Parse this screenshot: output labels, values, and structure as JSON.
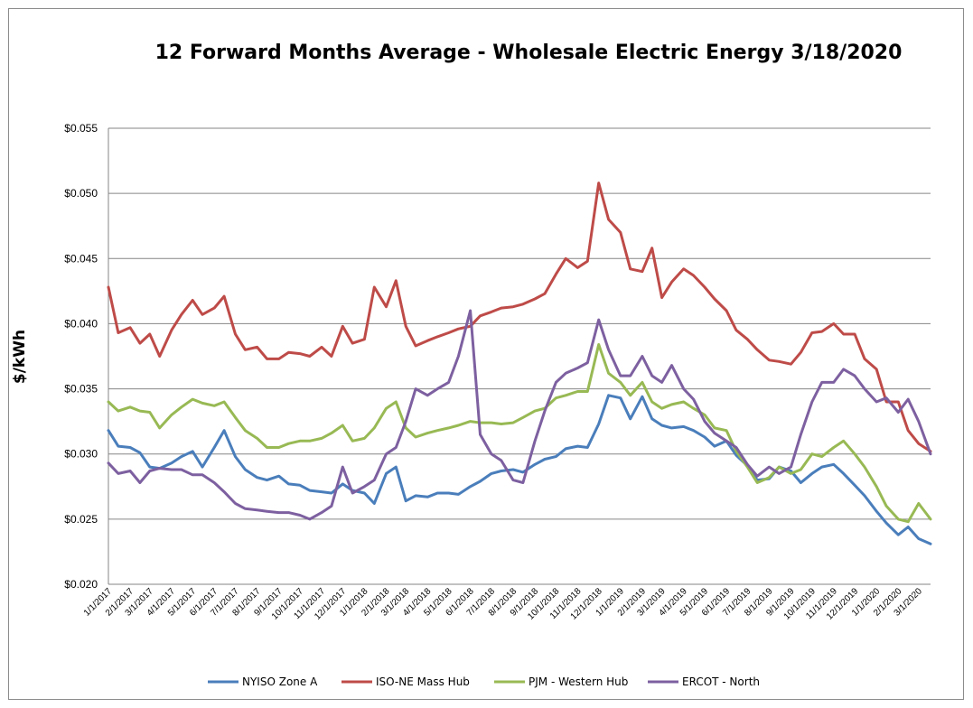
{
  "chart_data": {
    "type": "line",
    "title": "12 Forward Months Average - Wholesale Electric Energy 3/18/2020",
    "xlabel": "",
    "ylabel": "$/kWh",
    "ylim": [
      0.02,
      0.055
    ],
    "yticks": [
      "$0.020",
      "$0.025",
      "$0.030",
      "$0.035",
      "$0.040",
      "$0.045",
      "$0.050",
      "$0.055"
    ],
    "grid": true,
    "legend_position": "bottom",
    "x_tick_labels": [
      "1/1/2017",
      "2/1/2017",
      "3/1/2017",
      "4/1/2017",
      "5/1/2017",
      "6/1/2017",
      "7/1/2017",
      "8/1/2017",
      "9/1/2017",
      "10/1/2017",
      "11/1/2017",
      "12/1/2017",
      "1/1/2018",
      "2/1/2018",
      "3/1/2018",
      "4/1/2018",
      "5/1/2018",
      "6/1/2018",
      "7/1/2018",
      "8/1/2018",
      "9/1/2018",
      "10/1/2018",
      "11/1/2018",
      "12/1/2018",
      "1/1/2019",
      "2/1/2019",
      "3/1/2019",
      "4/1/2019",
      "5/1/2019",
      "6/1/2019",
      "7/1/2019",
      "8/1/2019",
      "9/1/2019",
      "10/1/2019",
      "11/1/2019",
      "12/1/2019",
      "1/1/2020",
      "2/1/2020",
      "3/1/2020"
    ],
    "x": [
      "2017-01-01",
      "2017-01-15",
      "2017-02-01",
      "2017-02-15",
      "2017-03-01",
      "2017-03-15",
      "2017-04-01",
      "2017-04-15",
      "2017-05-01",
      "2017-05-15",
      "2017-06-01",
      "2017-06-15",
      "2017-07-01",
      "2017-07-15",
      "2017-08-01",
      "2017-08-15",
      "2017-09-01",
      "2017-09-15",
      "2017-10-01",
      "2017-10-15",
      "2017-11-01",
      "2017-11-15",
      "2017-12-01",
      "2017-12-15",
      "2018-01-01",
      "2018-01-15",
      "2018-02-01",
      "2018-02-15",
      "2018-03-01",
      "2018-03-15",
      "2018-04-01",
      "2018-04-15",
      "2018-05-01",
      "2018-05-15",
      "2018-06-01",
      "2018-06-15",
      "2018-07-01",
      "2018-07-15",
      "2018-08-01",
      "2018-08-15",
      "2018-09-01",
      "2018-09-15",
      "2018-10-01",
      "2018-10-15",
      "2018-11-01",
      "2018-11-15",
      "2018-12-01",
      "2018-12-15",
      "2019-01-01",
      "2019-01-15",
      "2019-02-01",
      "2019-02-15",
      "2019-03-01",
      "2019-03-15",
      "2019-04-01",
      "2019-04-15",
      "2019-05-01",
      "2019-05-15",
      "2019-06-01",
      "2019-06-15",
      "2019-07-01",
      "2019-07-15",
      "2019-08-01",
      "2019-08-15",
      "2019-09-01",
      "2019-09-15",
      "2019-10-01",
      "2019-10-15",
      "2019-11-01",
      "2019-11-15",
      "2019-12-01",
      "2019-12-15",
      "2020-01-01",
      "2020-01-15",
      "2020-02-01",
      "2020-02-15",
      "2020-03-01",
      "2020-03-18"
    ],
    "series": [
      {
        "name": "NYISO Zone A",
        "color": "#4a7ebb",
        "values": [
          0.0318,
          0.0306,
          0.0305,
          0.0301,
          0.029,
          0.0289,
          0.0293,
          0.0298,
          0.0302,
          0.029,
          0.0305,
          0.0318,
          0.0298,
          0.0288,
          0.0282,
          0.028,
          0.0283,
          0.0277,
          0.0276,
          0.0272,
          0.0271,
          0.027,
          0.0277,
          0.0272,
          0.027,
          0.0262,
          0.0285,
          0.029,
          0.0264,
          0.0268,
          0.0267,
          0.027,
          0.027,
          0.0269,
          0.0275,
          0.0279,
          0.0285,
          0.0287,
          0.0288,
          0.0286,
          0.0292,
          0.0296,
          0.0298,
          0.0304,
          0.0306,
          0.0305,
          0.0323,
          0.0345,
          0.0343,
          0.0327,
          0.0344,
          0.0327,
          0.0322,
          0.032,
          0.0321,
          0.0318,
          0.0313,
          0.0306,
          0.031,
          0.0299,
          0.0291,
          0.028,
          0.0281,
          0.029,
          0.0287,
          0.0278,
          0.0285,
          0.029,
          0.0292,
          0.0285,
          0.0276,
          0.0268,
          0.0256,
          0.0247,
          0.0238,
          0.0244,
          0.0235,
          0.0231
        ]
      },
      {
        "name": "ISO-NE Mass Hub",
        "color": "#be4b48",
        "values": [
          0.0428,
          0.0393,
          0.0397,
          0.0385,
          0.0392,
          0.0375,
          0.0395,
          0.0407,
          0.0418,
          0.0407,
          0.0412,
          0.0421,
          0.0392,
          0.038,
          0.0382,
          0.0373,
          0.0373,
          0.0378,
          0.0377,
          0.0375,
          0.0382,
          0.0375,
          0.0398,
          0.0385,
          0.0388,
          0.0428,
          0.0413,
          0.0433,
          0.0398,
          0.0383,
          0.0387,
          0.039,
          0.0393,
          0.0396,
          0.0398,
          0.0406,
          0.0409,
          0.0412,
          0.0413,
          0.0415,
          0.0419,
          0.0423,
          0.0438,
          0.045,
          0.0443,
          0.0448,
          0.0508,
          0.048,
          0.047,
          0.0442,
          0.044,
          0.0458,
          0.042,
          0.0432,
          0.0442,
          0.0437,
          0.0428,
          0.0419,
          0.041,
          0.0395,
          0.0388,
          0.038,
          0.0372,
          0.0371,
          0.0369,
          0.0378,
          0.0393,
          0.0394,
          0.04,
          0.0392,
          0.0392,
          0.0373,
          0.0365,
          0.034,
          0.034,
          0.0318,
          0.0308,
          0.0302
        ]
      },
      {
        "name": "PJM - Western Hub",
        "color": "#98b954",
        "values": [
          0.034,
          0.0333,
          0.0336,
          0.0333,
          0.0332,
          0.032,
          0.033,
          0.0336,
          0.0342,
          0.0339,
          0.0337,
          0.034,
          0.0328,
          0.0318,
          0.0312,
          0.0305,
          0.0305,
          0.0308,
          0.031,
          0.031,
          0.0312,
          0.0316,
          0.0322,
          0.031,
          0.0312,
          0.032,
          0.0335,
          0.034,
          0.032,
          0.0313,
          0.0316,
          0.0318,
          0.032,
          0.0322,
          0.0325,
          0.0324,
          0.0324,
          0.0323,
          0.0324,
          0.0328,
          0.0333,
          0.0335,
          0.0343,
          0.0345,
          0.0348,
          0.0348,
          0.0384,
          0.0362,
          0.0355,
          0.0345,
          0.0355,
          0.034,
          0.0335,
          0.0338,
          0.034,
          0.0335,
          0.033,
          0.032,
          0.0318,
          0.0302,
          0.029,
          0.0278,
          0.0282,
          0.029,
          0.0285,
          0.0288,
          0.03,
          0.0298,
          0.0305,
          0.031,
          0.03,
          0.029,
          0.0275,
          0.026,
          0.025,
          0.0248,
          0.0262,
          0.025
        ]
      },
      {
        "name": "ERCOT - North",
        "color": "#7d60a0",
        "values": [
          0.0293,
          0.0285,
          0.0287,
          0.0278,
          0.0287,
          0.0289,
          0.0288,
          0.0288,
          0.0284,
          0.0284,
          0.0278,
          0.0271,
          0.0262,
          0.0258,
          0.0257,
          0.0256,
          0.0255,
          0.0255,
          0.0253,
          0.025,
          0.0255,
          0.026,
          0.029,
          0.027,
          0.0275,
          0.028,
          0.03,
          0.0305,
          0.0325,
          0.035,
          0.0345,
          0.035,
          0.0355,
          0.0375,
          0.041,
          0.0315,
          0.03,
          0.0295,
          0.028,
          0.0278,
          0.031,
          0.0333,
          0.0355,
          0.0362,
          0.0366,
          0.037,
          0.0403,
          0.038,
          0.036,
          0.036,
          0.0375,
          0.036,
          0.0355,
          0.0368,
          0.035,
          0.0342,
          0.0325,
          0.0316,
          0.031,
          0.0305,
          0.0292,
          0.0283,
          0.029,
          0.0285,
          0.029,
          0.0315,
          0.034,
          0.0355,
          0.0355,
          0.0365,
          0.036,
          0.035,
          0.034,
          0.0343,
          0.0332,
          0.0342,
          0.0325,
          0.03
        ]
      }
    ]
  }
}
